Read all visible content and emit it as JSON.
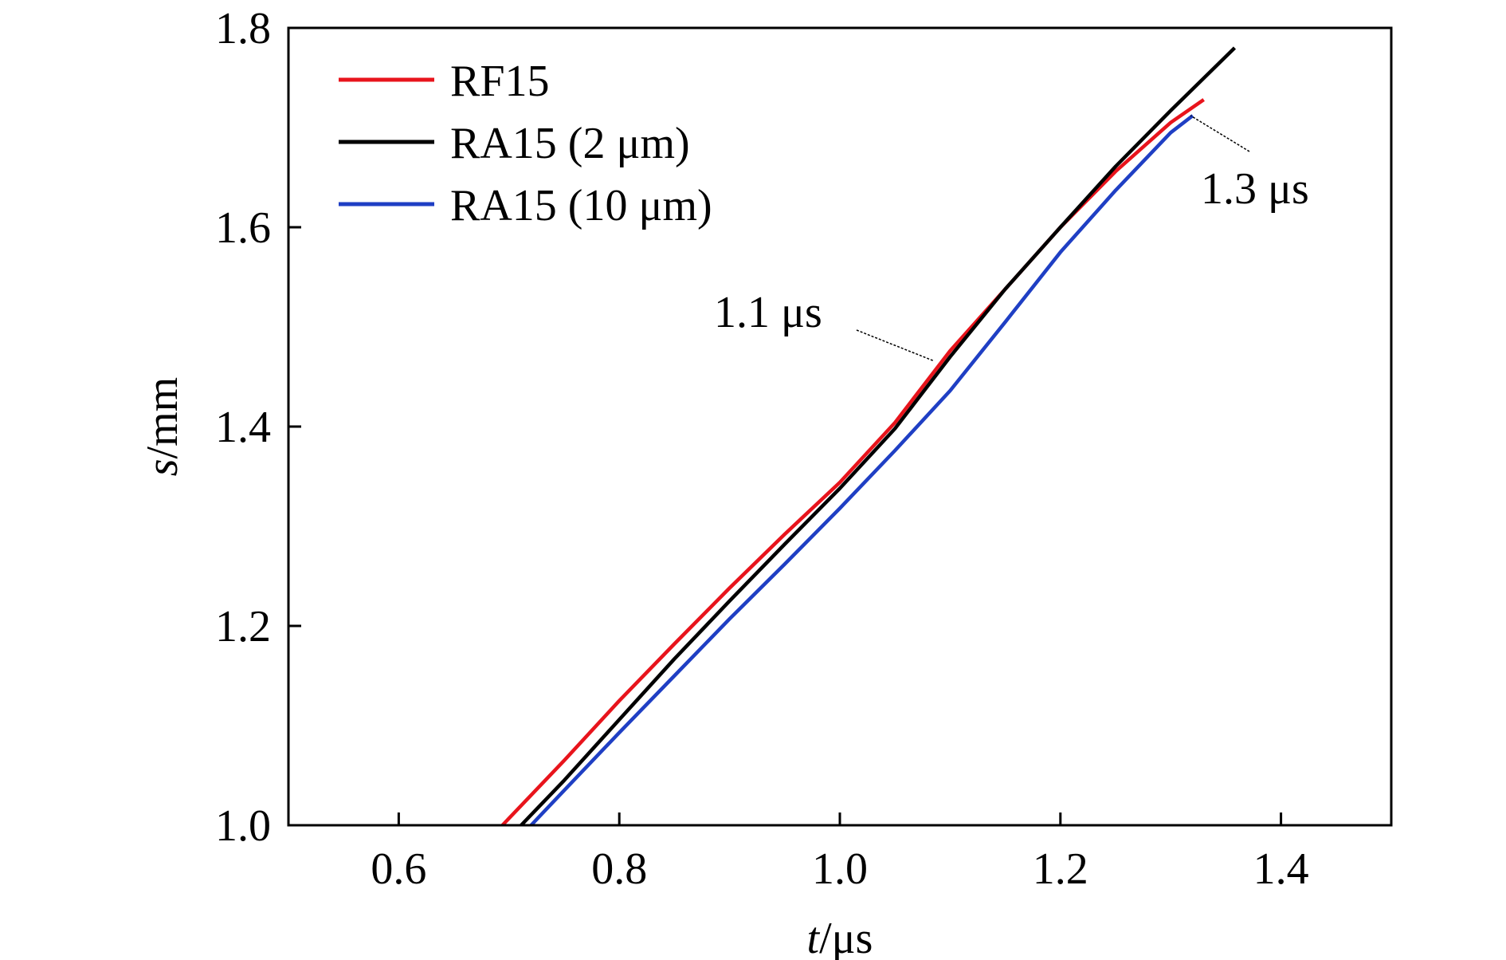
{
  "chart_data": {
    "type": "line",
    "xlabel": {
      "var": "t",
      "unit": "/μs"
    },
    "ylabel": {
      "var": "s",
      "unit": "/mm"
    },
    "xlim": [
      0.5,
      1.5
    ],
    "ylim": [
      1.0,
      1.8
    ],
    "xticks": [
      0.6,
      0.8,
      1.0,
      1.2,
      1.4
    ],
    "xtick_labels": [
      "0.6",
      "0.8",
      "1.0",
      "1.2",
      "1.4"
    ],
    "yticks": [
      1.0,
      1.2,
      1.4,
      1.6,
      1.8
    ],
    "ytick_labels": [
      "1.0",
      "1.2",
      "1.4",
      "1.6",
      "1.8"
    ],
    "grid": false,
    "legend_position": "top-left",
    "series": [
      {
        "name": "RF15",
        "color": "#e8141c",
        "x": [
          0.694,
          0.75,
          0.8,
          0.85,
          0.9,
          0.95,
          1.0,
          1.05,
          1.1,
          1.15,
          1.2,
          1.25,
          1.3,
          1.33
        ],
        "y": [
          1.0,
          1.065,
          1.125,
          1.182,
          1.238,
          1.292,
          1.344,
          1.404,
          1.476,
          1.538,
          1.6,
          1.656,
          1.705,
          1.728
        ]
      },
      {
        "name": "RA15 (2 μm)",
        "color": "#000000",
        "x": [
          0.711,
          0.75,
          0.8,
          0.85,
          0.9,
          0.95,
          1.0,
          1.05,
          1.1,
          1.15,
          1.2,
          1.25,
          1.3,
          1.358
        ],
        "y": [
          1.0,
          1.045,
          1.106,
          1.167,
          1.225,
          1.282,
          1.338,
          1.398,
          1.47,
          1.538,
          1.6,
          1.661,
          1.717,
          1.78
        ]
      },
      {
        "name": "RA15 (10 μm)",
        "color": "#1f3fc4",
        "x": [
          0.72,
          0.75,
          0.8,
          0.85,
          0.9,
          0.95,
          1.0,
          1.05,
          1.1,
          1.15,
          1.2,
          1.25,
          1.3,
          1.32
        ],
        "y": [
          1.0,
          1.035,
          1.093,
          1.15,
          1.207,
          1.262,
          1.318,
          1.376,
          1.436,
          1.505,
          1.575,
          1.637,
          1.695,
          1.712
        ]
      }
    ],
    "annotations": [
      {
        "text": "1.1 μs",
        "target_x": 1.085,
        "target_y": 1.466
      },
      {
        "text": "1.3 μs",
        "target_x": 1.318,
        "target_y": 1.712
      }
    ]
  }
}
